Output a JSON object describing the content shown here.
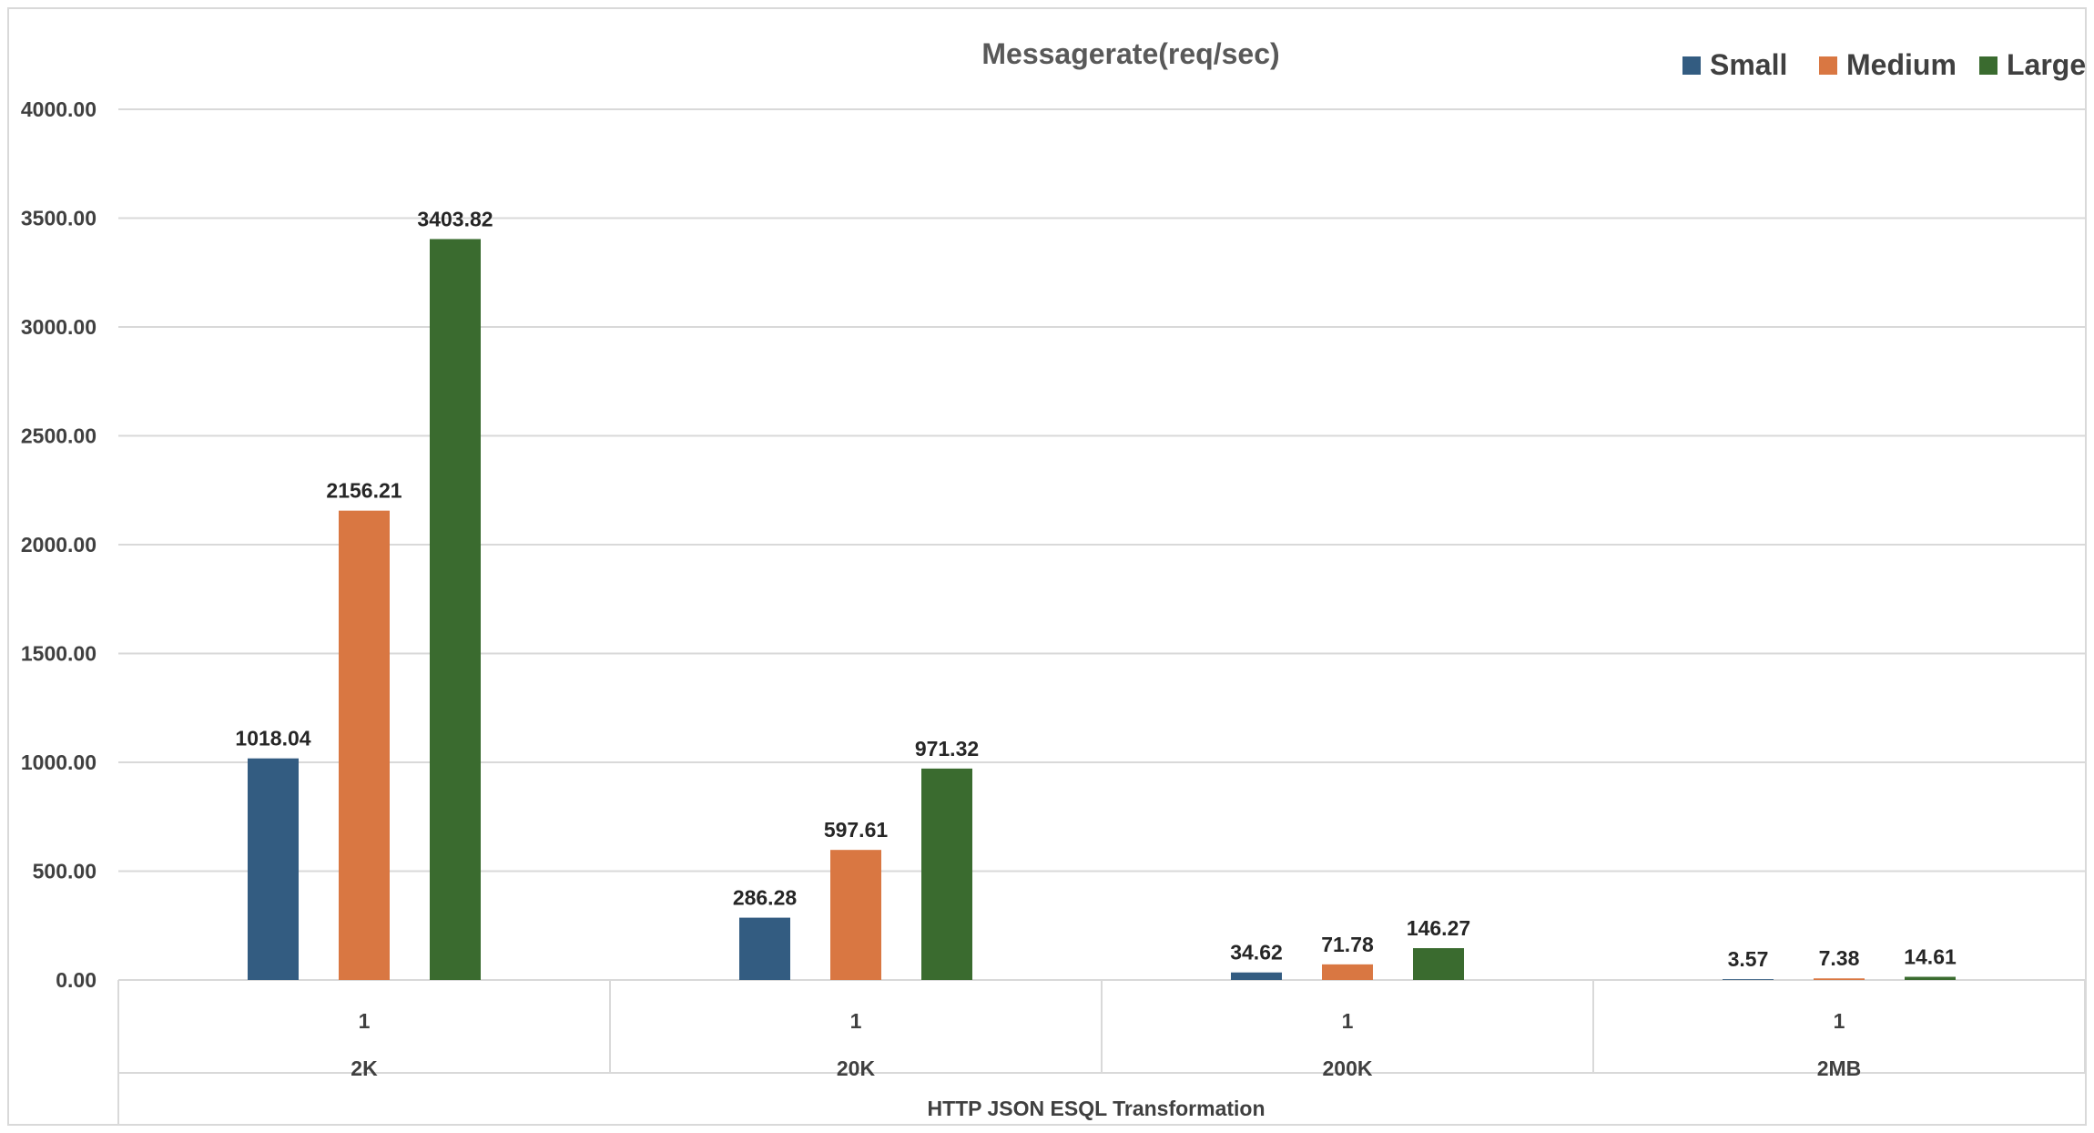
{
  "chart_data": {
    "type": "bar",
    "title": "Messagerate(req/sec)",
    "xlabel": "HTTP JSON ESQL Transformation",
    "ylabel": "",
    "ylim": [
      0,
      4000
    ],
    "yticks": [
      "0.00",
      "500.00",
      "1000.00",
      "1500.00",
      "2000.00",
      "2500.00",
      "3000.00",
      "3500.00",
      "4000.00"
    ],
    "grid": true,
    "legend_position": "top-right",
    "categories": [
      {
        "sub": "1",
        "group": "2K"
      },
      {
        "sub": "1",
        "group": "20K"
      },
      {
        "sub": "1",
        "group": "200K"
      },
      {
        "sub": "1",
        "group": "2MB"
      }
    ],
    "series": [
      {
        "name": "Small",
        "color": "#335c81",
        "values": [
          1018.04,
          286.28,
          34.62,
          3.57
        ],
        "labels": [
          "1018.04",
          "286.28",
          "34.62",
          "3.57"
        ]
      },
      {
        "name": "Medium",
        "color": "#d97742",
        "values": [
          2156.21,
          597.61,
          71.78,
          7.38
        ],
        "labels": [
          "2156.21",
          "597.61",
          "71.78",
          "7.38"
        ]
      },
      {
        "name": "Large",
        "color": "#3a6b2f",
        "values": [
          3403.82,
          971.32,
          146.27,
          14.61
        ],
        "labels": [
          "3403.82",
          "971.32",
          "146.27",
          "14.61"
        ]
      }
    ]
  }
}
